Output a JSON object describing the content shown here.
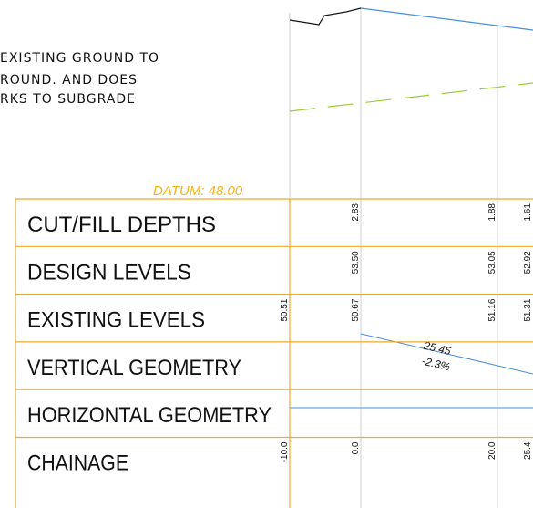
{
  "notes": [
    "EXISTING GROUND TO",
    "ROUND. AND DOES",
    "RKS TO SUBGRADE"
  ],
  "datum": "DATUM: 48.00",
  "table": {
    "rows": [
      {
        "label": "CUT/FILL DEPTHS",
        "values": [
          "2.83",
          "1.88",
          "1.61"
        ]
      },
      {
        "label": "DESIGN LEVELS",
        "values": [
          "53.50",
          "53.05",
          "52.92"
        ]
      },
      {
        "label": "EXISTING LEVELS",
        "values": [
          "50.51",
          "50.67",
          "51.16",
          "51.31"
        ]
      },
      {
        "label": "VERTICAL GEOMETRY",
        "length": "25.45",
        "grade": "-2.3%"
      },
      {
        "label": "HORIZONTAL GEOMETRY"
      },
      {
        "label": "CHAINAGE",
        "values": [
          "-10.0",
          "0.0",
          "20.0",
          "25.4"
        ]
      }
    ]
  }
}
